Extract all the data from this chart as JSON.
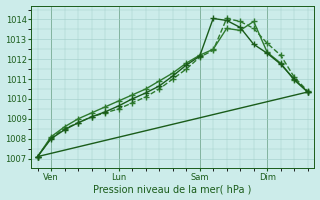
{
  "bg_color": "#ccecea",
  "grid_color": "#a0ccc8",
  "line_color_1": "#1a5c1a",
  "line_color_2": "#2e7a2e",
  "xlabel": "Pression niveau de la mer( hPa )",
  "ylim": [
    1006.5,
    1014.7
  ],
  "yticks": [
    1007,
    1008,
    1009,
    1010,
    1011,
    1012,
    1013,
    1014
  ],
  "xlim": [
    -0.5,
    20.5
  ],
  "xtick_positions": [
    1,
    6,
    12,
    17
  ],
  "xtick_labels": [
    "Ven",
    "Lun",
    "Sam",
    "Dim"
  ],
  "series": [
    {
      "x": [
        0,
        1,
        2,
        3,
        4,
        5,
        6,
        7,
        8,
        9,
        10,
        11,
        12,
        13,
        14,
        15,
        16,
        17,
        18,
        19,
        20
      ],
      "y": [
        1007.1,
        1008.05,
        1008.5,
        1008.8,
        1009.1,
        1009.3,
        1009.5,
        1009.8,
        1010.1,
        1010.5,
        1011.0,
        1011.5,
        1012.1,
        1012.45,
        1014.05,
        1013.9,
        1013.55,
        1012.8,
        1012.2,
        1011.1,
        1010.4
      ],
      "linestyle": "--",
      "marker": "+",
      "markersize": 4,
      "linewidth": 1.0,
      "color": "#2e7a2e"
    },
    {
      "x": [
        0,
        1,
        2,
        3,
        4,
        5,
        6,
        7,
        8,
        9,
        10,
        11,
        12,
        13,
        14,
        15,
        16,
        17,
        18,
        19,
        20
      ],
      "y": [
        1007.1,
        1008.1,
        1008.6,
        1009.0,
        1009.3,
        1009.6,
        1009.9,
        1010.2,
        1010.5,
        1010.9,
        1011.3,
        1011.8,
        1012.2,
        1012.5,
        1013.55,
        1013.45,
        1013.9,
        1012.35,
        1011.8,
        1010.95,
        1010.35
      ],
      "linestyle": "-",
      "marker": "+",
      "markersize": 4,
      "linewidth": 1.0,
      "color": "#2e7a2e"
    },
    {
      "x": [
        0,
        1,
        2,
        3,
        4,
        5,
        6,
        7,
        8,
        9,
        10,
        11,
        12,
        13,
        14,
        15,
        16,
        17,
        18,
        19,
        20
      ],
      "y": [
        1007.1,
        1008.0,
        1008.45,
        1008.8,
        1009.1,
        1009.35,
        1009.65,
        1010.0,
        1010.3,
        1010.65,
        1011.15,
        1011.7,
        1012.15,
        1014.05,
        1013.95,
        1013.6,
        1012.75,
        1012.3,
        1011.75,
        1011.0,
        1010.35
      ],
      "linestyle": "-",
      "marker": "+",
      "markersize": 4,
      "linewidth": 1.0,
      "color": "#1a5c1a"
    },
    {
      "x": [
        0,
        20
      ],
      "y": [
        1007.1,
        1010.35
      ],
      "linestyle": "-",
      "marker": "+",
      "markersize": 4,
      "linewidth": 1.0,
      "color": "#1a5c1a"
    }
  ],
  "figsize": [
    3.2,
    2.0
  ],
  "dpi": 100
}
